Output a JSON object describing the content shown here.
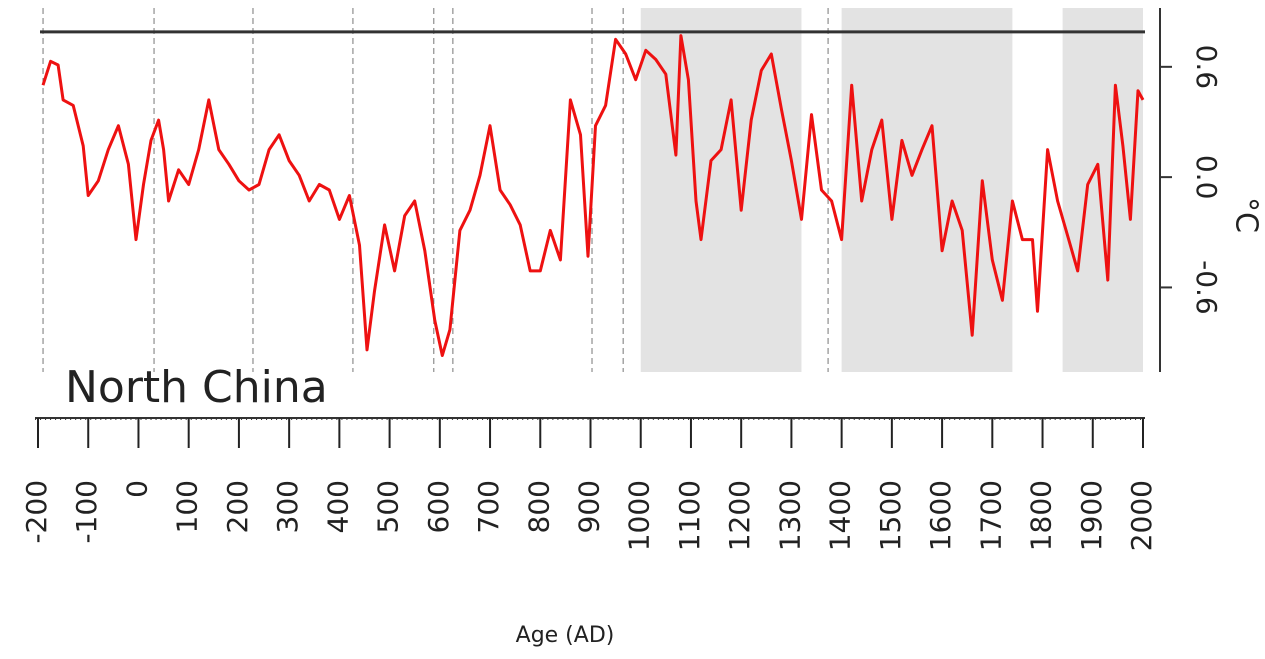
{
  "chart_data": {
    "type": "line",
    "annotation": "North China",
    "x_label": "Age (AD)",
    "y_label": "°C",
    "color": "#ee1111",
    "x": [
      -190,
      -175,
      -160,
      -150,
      -130,
      -110,
      -100,
      -80,
      -60,
      -40,
      -20,
      -5,
      10,
      25,
      40,
      50,
      60,
      80,
      100,
      120,
      140,
      160,
      180,
      200,
      220,
      240,
      260,
      280,
      300,
      320,
      340,
      360,
      380,
      400,
      420,
      440,
      455,
      470,
      490,
      510,
      530,
      550,
      570,
      590,
      605,
      620,
      640,
      660,
      680,
      700,
      720,
      740,
      760,
      780,
      800,
      820,
      840,
      860,
      880,
      895,
      910,
      930,
      950,
      970,
      990,
      1010,
      1030,
      1050,
      1070,
      1080,
      1095,
      1110,
      1120,
      1140,
      1160,
      1180,
      1200,
      1220,
      1240,
      1260,
      1280,
      1300,
      1320,
      1340,
      1360,
      1380,
      1400,
      1420,
      1440,
      1460,
      1480,
      1500,
      1520,
      1540,
      1560,
      1580,
      1600,
      1620,
      1640,
      1660,
      1680,
      1700,
      1720,
      1740,
      1760,
      1780,
      1790,
      1810,
      1830,
      1850,
      1870,
      1890,
      1910,
      1930,
      1945,
      1960,
      1975,
      1990,
      2000
    ],
    "values": [
      0.5,
      0.63,
      0.61,
      0.42,
      0.39,
      0.17,
      -0.1,
      -0.02,
      0.15,
      0.28,
      0.07,
      -0.34,
      -0.04,
      0.2,
      0.31,
      0.15,
      -0.13,
      0.04,
      -0.04,
      0.15,
      0.42,
      0.15,
      0.07,
      -0.02,
      -0.07,
      -0.04,
      0.15,
      0.23,
      0.09,
      0.01,
      -0.13,
      -0.04,
      -0.07,
      -0.23,
      -0.1,
      -0.37,
      -0.94,
      -0.62,
      -0.26,
      -0.51,
      -0.21,
      -0.13,
      -0.4,
      -0.78,
      -0.97,
      -0.83,
      -0.29,
      -0.18,
      0.01,
      0.28,
      -0.07,
      -0.15,
      -0.26,
      -0.51,
      -0.51,
      -0.29,
      -0.45,
      0.42,
      0.23,
      -0.43,
      0.28,
      0.39,
      0.75,
      0.67,
      0.53,
      0.69,
      0.64,
      0.56,
      0.12,
      0.77,
      0.53,
      -0.13,
      -0.34,
      0.09,
      0.15,
      0.42,
      -0.18,
      0.31,
      0.58,
      0.67,
      0.37,
      0.09,
      -0.23,
      0.34,
      -0.07,
      -0.13,
      -0.34,
      0.5,
      -0.13,
      0.15,
      0.31,
      -0.23,
      0.2,
      0.01,
      0.15,
      0.28,
      -0.4,
      -0.13,
      -0.29,
      -0.86,
      -0.02,
      -0.45,
      -0.67,
      -0.13,
      -0.34,
      -0.34,
      -0.73,
      0.15,
      -0.13,
      -0.32,
      -0.51,
      -0.04,
      0.07,
      -0.56,
      0.5,
      0.17,
      -0.23,
      0.47,
      0.42
    ],
    "xlim": [
      -206,
      2004
    ],
    "ylim": [
      -1.06,
      0.92
    ],
    "xticks": [
      -200,
      -100,
      0,
      100,
      200,
      300,
      400,
      500,
      600,
      700,
      800,
      900,
      1000,
      1100,
      1200,
      1300,
      1400,
      1500,
      1600,
      1700,
      1800,
      1900,
      2000
    ],
    "yticks": [
      -0.6,
      {
        "value": 0,
        "label": "0.0"
      },
      0.6
    ],
    "reference_line": 0.79,
    "shaded_ranges": [
      [
        1000,
        1320
      ],
      [
        1400,
        1740
      ],
      [
        1840,
        2000
      ]
    ],
    "dashed_lines": [
      -190,
      31,
      228,
      427,
      588,
      626,
      903,
      965,
      1373
    ],
    "grid": false
  }
}
